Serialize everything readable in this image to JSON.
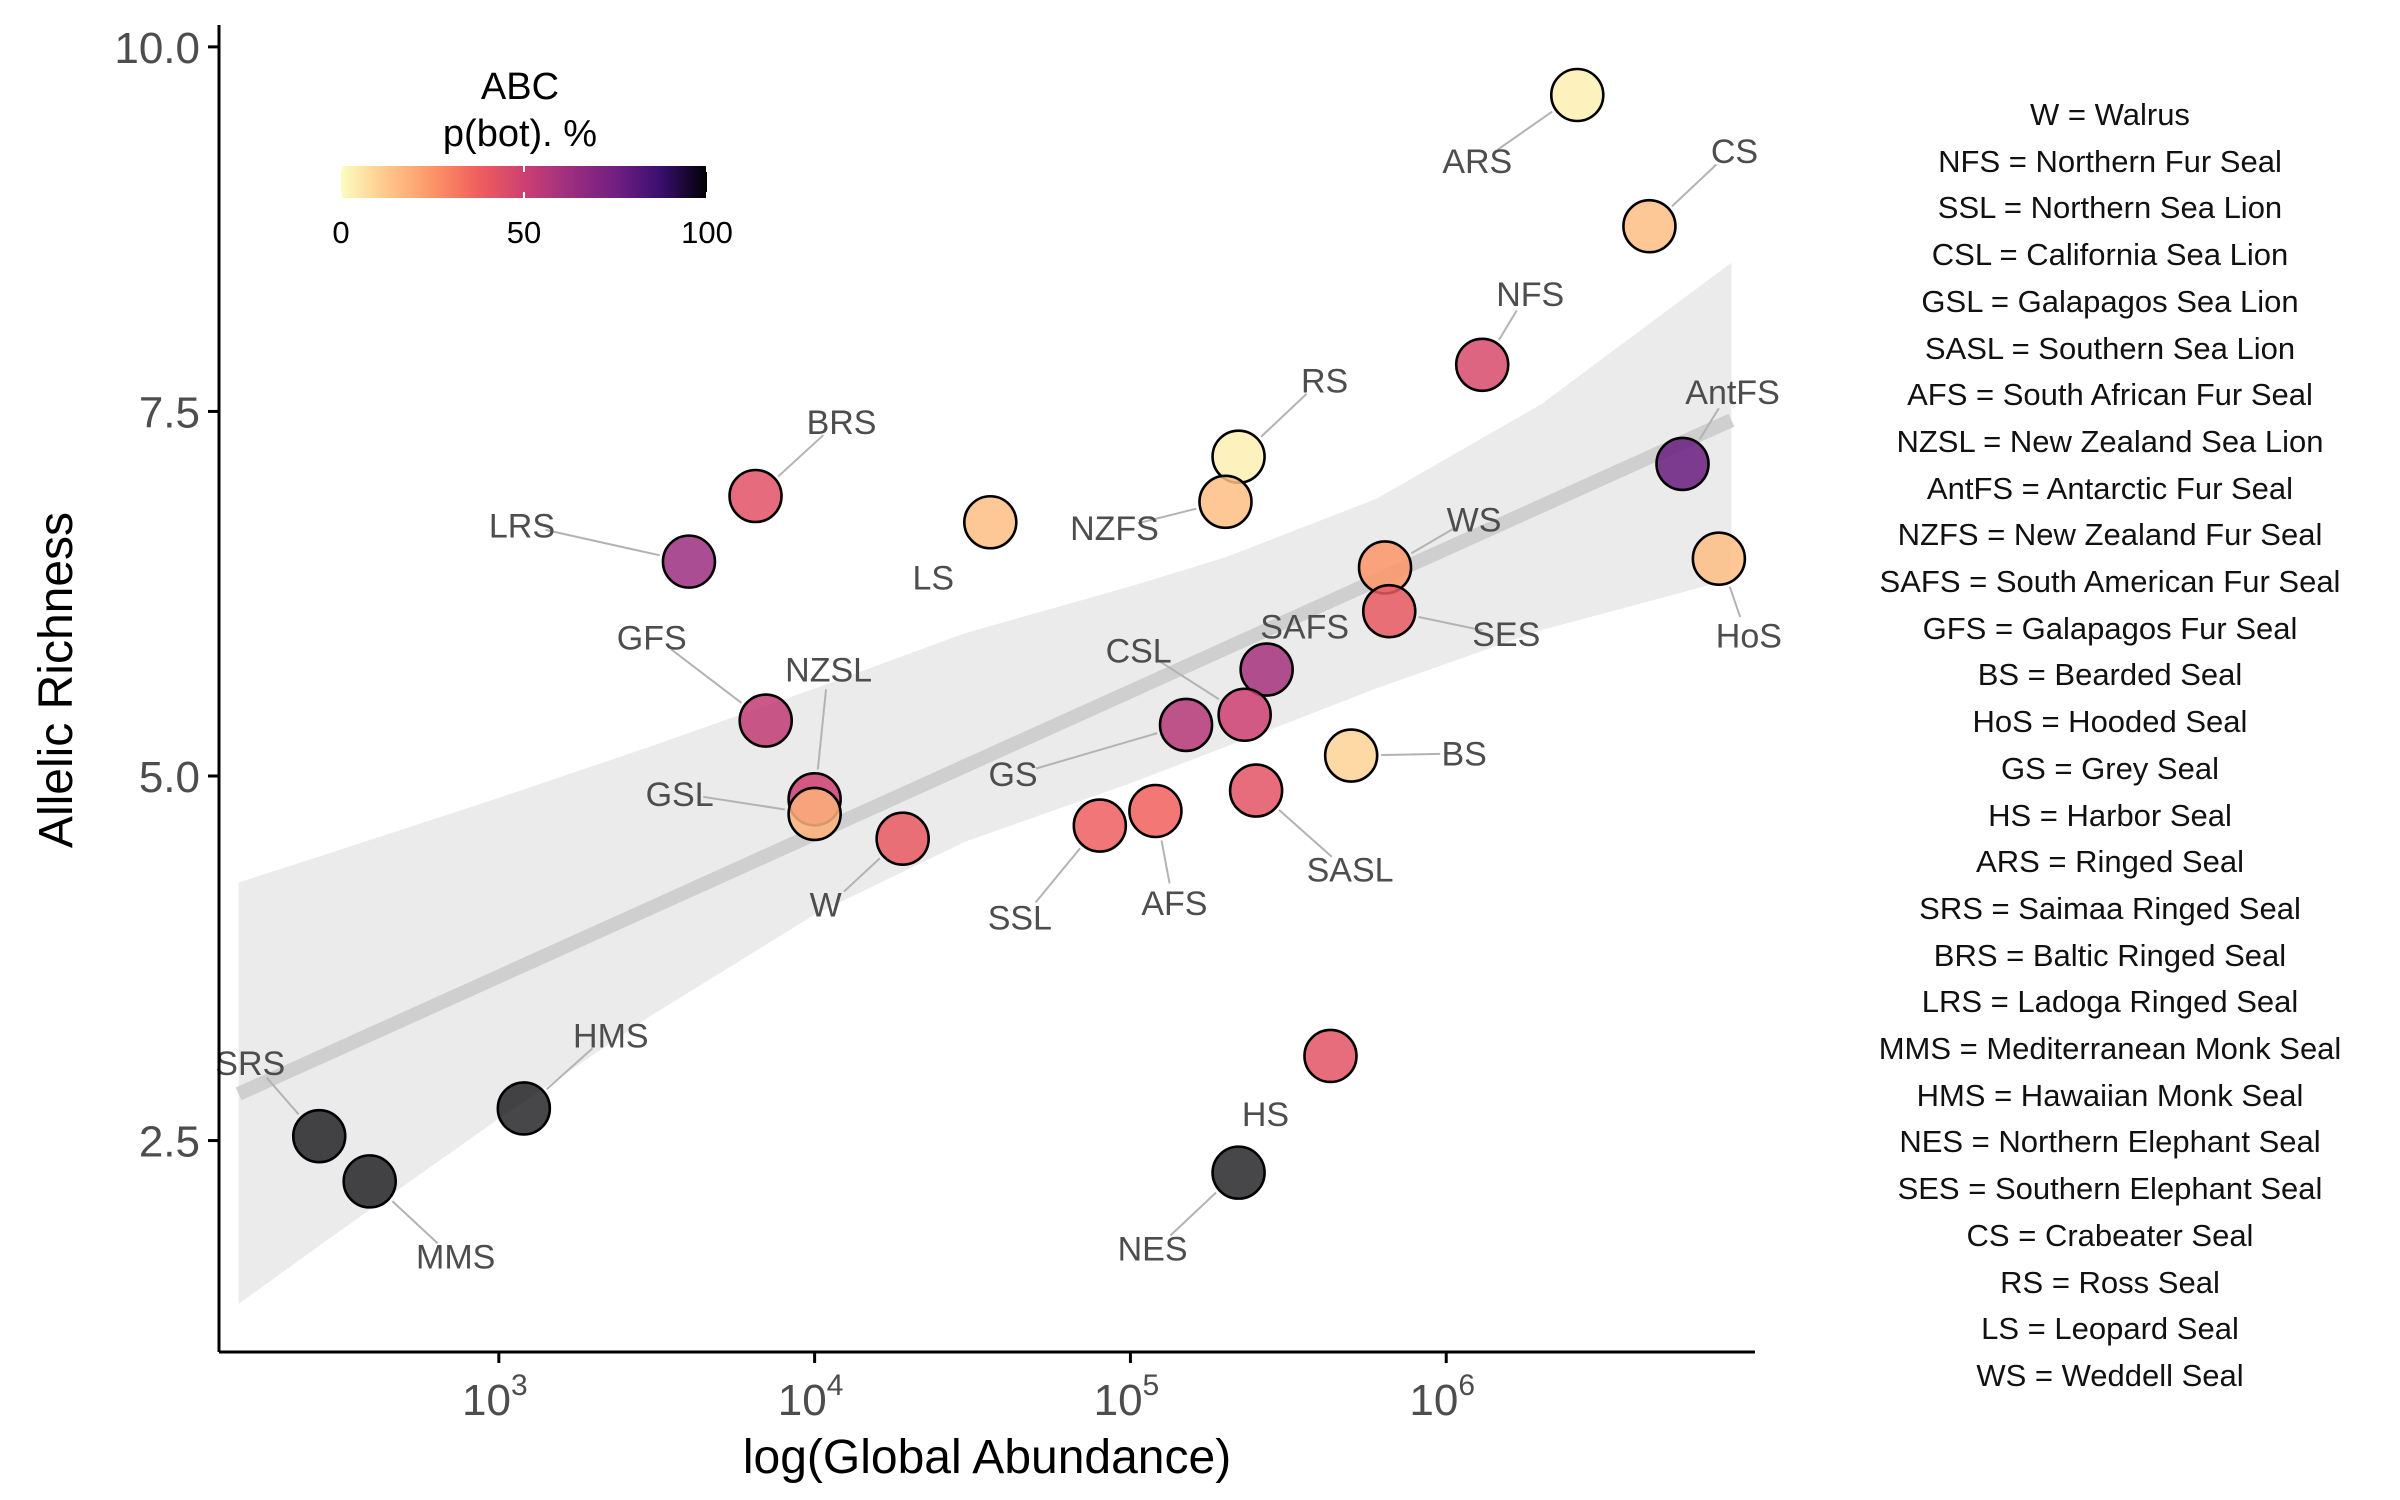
{
  "chart_data": {
    "type": "scatter",
    "xlabel": "log(Global Abundance)",
    "ylabel": "Allelic Richness",
    "x_scale": "log10",
    "xlim": [
      130,
      9500000
    ],
    "ylim": [
      1.05,
      10.15
    ],
    "x_ticks": [
      {
        "value": 1000,
        "base": "10",
        "exp": "3"
      },
      {
        "value": 10000,
        "base": "10",
        "exp": "4"
      },
      {
        "value": 100000,
        "base": "10",
        "exp": "5"
      },
      {
        "value": 1000000,
        "base": "10",
        "exp": "6"
      }
    ],
    "y_ticks": [
      {
        "value": 2.5,
        "label": "2.5"
      },
      {
        "value": 5.0,
        "label": "5.0"
      },
      {
        "value": 7.5,
        "label": "7.5"
      },
      {
        "value": 10.0,
        "label": "10.0"
      }
    ],
    "grid": false,
    "color_scale": {
      "title_line1": "ABC",
      "title_line2": "p(bot). %",
      "palette": "magma (reversed)",
      "range": [
        0,
        100
      ],
      "ticks": [
        {
          "value": 0,
          "label": "0"
        },
        {
          "value": 50,
          "label": "50"
        },
        {
          "value": 100,
          "label": "100"
        }
      ],
      "placement": "top-left"
    },
    "regression": {
      "line": [
        {
          "x": 150,
          "y": 2.82
        },
        {
          "x": 8000000,
          "y": 7.44
        }
      ],
      "ci_upper": [
        [
          150,
          4.27
        ],
        [
          300,
          4.48
        ],
        [
          1000,
          4.85
        ],
        [
          3000,
          5.2
        ],
        [
          10000,
          5.6
        ],
        [
          30000,
          5.98
        ],
        [
          100000,
          6.3
        ],
        [
          200000,
          6.5
        ],
        [
          600000,
          6.9
        ],
        [
          2000000,
          7.55
        ],
        [
          8000000,
          8.52
        ]
      ],
      "ci_lower": [
        [
          150,
          1.38
        ],
        [
          300,
          1.85
        ],
        [
          1000,
          2.65
        ],
        [
          3000,
          3.35
        ],
        [
          10000,
          4.05
        ],
        [
          30000,
          4.55
        ],
        [
          100000,
          4.95
        ],
        [
          200000,
          5.2
        ],
        [
          600000,
          5.6
        ],
        [
          2000000,
          6.0
        ],
        [
          8000000,
          6.35
        ]
      ],
      "line_color": "#cfcfcf",
      "band_color": "#ebebeb"
    },
    "points": [
      {
        "label": "ARS",
        "x": 2600000,
        "y": 9.67,
        "p": 3
      },
      {
        "label": "CS",
        "x": 4400000,
        "y": 8.77,
        "p": 15
      },
      {
        "label": "NFS",
        "x": 1300000,
        "y": 7.82,
        "p": 46
      },
      {
        "label": "RS",
        "x": 220000,
        "y": 7.19,
        "p": 3
      },
      {
        "label": "AntFS",
        "x": 5600000,
        "y": 7.14,
        "p": 77
      },
      {
        "label": "NZFS",
        "x": 200000,
        "y": 6.88,
        "p": 15
      },
      {
        "label": "LS",
        "x": 36000,
        "y": 6.74,
        "p": 15
      },
      {
        "label": "BRS",
        "x": 6500,
        "y": 6.92,
        "p": 43
      },
      {
        "label": "LRS",
        "x": 4000,
        "y": 6.47,
        "p": 63
      },
      {
        "label": "HoS",
        "x": 7300000,
        "y": 6.49,
        "p": 15
      },
      {
        "label": "WS",
        "x": 640000,
        "y": 6.43,
        "p": 25
      },
      {
        "label": "SES",
        "x": 660000,
        "y": 6.13,
        "p": 40
      },
      {
        "label": "SAFS",
        "x": 270000,
        "y": 5.73,
        "p": 60
      },
      {
        "label": "GFS",
        "x": 7000,
        "y": 5.38,
        "p": 53
      },
      {
        "label": "CSL",
        "x": 230000,
        "y": 5.42,
        "p": 50
      },
      {
        "label": "GS",
        "x": 150000,
        "y": 5.35,
        "p": 56
      },
      {
        "label": "BS",
        "x": 500000,
        "y": 5.14,
        "p": 10
      },
      {
        "label": "SASL",
        "x": 250000,
        "y": 4.9,
        "p": 42
      },
      {
        "label": "NZSL",
        "x": 10000,
        "y": 4.84,
        "p": 50
      },
      {
        "label": "GSL",
        "x": 10000,
        "y": 4.74,
        "p": 18
      },
      {
        "label": "AFS",
        "x": 120000,
        "y": 4.76,
        "p": 37
      },
      {
        "label": "SSL",
        "x": 80000,
        "y": 4.66,
        "p": 38
      },
      {
        "label": "W",
        "x": 19000,
        "y": 4.57,
        "p": 40
      },
      {
        "label": "HS",
        "x": 430000,
        "y": 3.08,
        "p": 42
      },
      {
        "label": "HMS",
        "x": 1200,
        "y": 2.72,
        "p": 100
      },
      {
        "label": "SRS",
        "x": 270,
        "y": 2.53,
        "p": 100
      },
      {
        "label": "NES",
        "x": 220000,
        "y": 2.28,
        "p": 100
      },
      {
        "label": "MMS",
        "x": 390,
        "y": 2.22,
        "p": 100
      }
    ]
  },
  "species_key": [
    "W = Walrus",
    "NFS = Northern Fur Seal",
    "SSL = Northern Sea Lion",
    "CSL = California Sea Lion",
    "GSL = Galapagos Sea Lion",
    "SASL = Southern Sea Lion",
    "AFS = South African Fur Seal",
    "NZSL = New Zealand Sea Lion",
    "AntFS = Antarctic Fur Seal",
    "NZFS = New Zealand Fur Seal",
    "SAFS = South American Fur Seal",
    "GFS = Galapagos Fur Seal",
    "BS = Bearded Seal",
    "HoS = Hooded Seal",
    "GS = Grey Seal",
    "HS = Harbor Seal",
    "ARS = Ringed Seal",
    "SRS = Saimaa Ringed Seal",
    "BRS = Baltic Ringed Seal",
    "LRS = Ladoga Ringed Seal",
    "MMS = Mediterranean Monk Seal",
    "HMS = Hawaiian Monk Seal",
    "NES = Northern Elephant Seal",
    "SES = Southern Elephant Seal",
    "CS = Crabeater Seal",
    "RS = Ross Seal",
    "LS = Leopard Seal",
    "WS = Weddell Seal"
  ]
}
